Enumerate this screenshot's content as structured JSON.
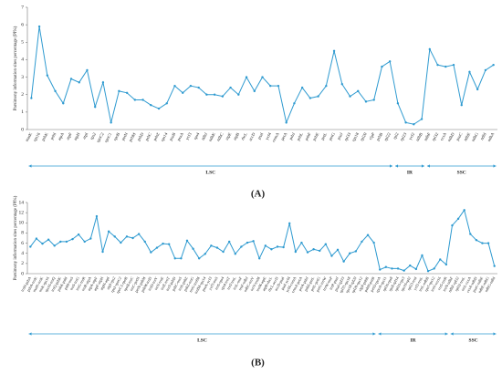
{
  "chart_data": [
    {
      "type": "line",
      "panel": "(A)",
      "ylabel": "Parsimony information sites percentage (PI%)",
      "color": "#2e9ad0",
      "ylim": [
        0,
        7
      ],
      "yticks": [
        0,
        1,
        2,
        3,
        4,
        5,
        6,
        7
      ],
      "regions": [
        {
          "label": "LSC",
          "categories": [
            "matK",
            "rps16",
            "psbK",
            "psbI",
            "atpA",
            "atpF",
            "atpH",
            "atpI",
            "rps2",
            "rpoC2",
            "rpoC1",
            "rpoB",
            "petN",
            "psbM",
            "psbD",
            "psbC",
            "psbZ",
            "rps14",
            "psaB",
            "psaA",
            "ycf3",
            "rps4",
            "ndhJ",
            "ndhK",
            "ndhC",
            "atpE",
            "atpB",
            "rbcL",
            "accD",
            "psaI",
            "ycf4",
            "cemA",
            "petA",
            "psbJ",
            "psbL",
            "psbF",
            "psbE",
            "petL",
            "petG",
            "psaJ",
            "rpl33",
            "rps18",
            "rpl20",
            "clpP",
            "psbB",
            "rpl22"
          ],
          "values": [
            1.8,
            5.9,
            3.1,
            2.2,
            1.5,
            2.9,
            2.7,
            3.4,
            1.3,
            2.7,
            0.4,
            2.2,
            2.1,
            1.7,
            1.7,
            1.4,
            1.2,
            1.5,
            2.5,
            2.1,
            2.5,
            2.4,
            2.0,
            2.0,
            1.9,
            2.4,
            2.0,
            3.0,
            2.2,
            3.0,
            2.5,
            2.5,
            0.4,
            1.5,
            2.4,
            1.8,
            1.9,
            2.5,
            4.5,
            2.6,
            1.9,
            2.2,
            1.6,
            1.7,
            3.6,
            3.9
          ]
        },
        {
          "label": "IR",
          "categories": [
            "rpl2",
            "rpl23",
            "ycf2",
            "ndhB"
          ],
          "values": [
            1.5,
            0.4,
            0.3,
            0.6
          ]
        },
        {
          "label": "SSC",
          "categories": [
            "ndhF",
            "rpl32",
            "ccsA",
            "ndhD",
            "psaC",
            "ndhE",
            "ndhG",
            "ndhI",
            "ndhA"
          ],
          "values": [
            4.6,
            3.7,
            3.6,
            3.7,
            1.4,
            3.3,
            2.3,
            3.4,
            3.7
          ]
        }
      ]
    },
    {
      "type": "line",
      "panel": "(B)",
      "ylabel": "Parsimony information sites percentage (PI%)",
      "color": "#2e9ad0",
      "ylim": [
        0,
        14
      ],
      "yticks": [
        0,
        2,
        4,
        6,
        8,
        10,
        12,
        14
      ],
      "regions": [
        {
          "label": "LSC",
          "categories": [
            "trnH-psbA",
            "psbA-trnK",
            "matK-trnK",
            "trnK-rps16",
            "rps16-trnQ",
            "trnQ-psbK",
            "psbK-psbI",
            "psbI-trnS",
            "trnS-trnG",
            "trnG-trnR",
            "trnR-atpA",
            "atpA-atpF",
            "atpF-atpH",
            "atpH-atpI",
            "atpI-rps2",
            "rps2-rpoC2",
            "rpoC1-rpoB",
            "rpoB-trnC",
            "trnC-petN",
            "petN-psbM",
            "psbM-trnD",
            "trnD-trnY",
            "trnY-trnE",
            "trnE-trnT",
            "trnT-psbD",
            "psbC-trnS",
            "trnS-psbZ",
            "psbZ-trnG",
            "trnG-trnfM",
            "trnfM-rps14",
            "psaA-ycf3",
            "ycf3-trnS",
            "trnS-rps4",
            "rps4-trnT",
            "trnT-trnL",
            "trnL-trnF",
            "trnF-ndhJ",
            "ndhC-trnV",
            "trnV-trnM",
            "trnM-atpE",
            "atpB-rbcL",
            "rbcL-accD",
            "accD-psaI",
            "psaI-ycf4",
            "ycf4-cemA",
            "cemA-petA",
            "petA-psbJ",
            "psbE-petL",
            "petL-petG",
            "petG-trnW",
            "trnW-trnP",
            "trnP-psaJ",
            "psaJ-rpl33",
            "rpl33-rps18",
            "rps18-rpl20",
            "rpl20-rps12",
            "clpP-psbB",
            "psbH-petB"
          ],
          "values": [
            5.3,
            6.9,
            5.9,
            6.7,
            5.5,
            6.3,
            6.3,
            6.8,
            7.7,
            6.3,
            6.9,
            11.3,
            4.3,
            8.3,
            7.3,
            6.1,
            7.3,
            7.0,
            7.8,
            6.3,
            4.2,
            5.1,
            5.9,
            5.8,
            3.0,
            3.0,
            6.5,
            4.9,
            3.0,
            3.9,
            5.5,
            5.1,
            4.3,
            6.3,
            3.9,
            5.3,
            6.1,
            6.4,
            3.0,
            5.5,
            4.8,
            5.3,
            5.2,
            9.9,
            4.3,
            6.1,
            4.2,
            4.8,
            4.5,
            5.8,
            3.5,
            4.7,
            2.4,
            4.0,
            4.4,
            6.3,
            7.6,
            6.1
          ]
        },
        {
          "label": "IR",
          "categories": [
            "petD-rpoA",
            "rpoA-rps11",
            "rpl36-rps8",
            "rps8-rpl14",
            "rpl16-rps3",
            "rps19-rpl2",
            "rpl23-trnI",
            "ycf2-trnL",
            "trnL-ndhB",
            "rps7-rps12",
            "trnV-rrn16",
            "rrn5-trnR"
          ],
          "values": [
            0.8,
            1.3,
            1.0,
            1.0,
            0.6,
            1.6,
            0.9,
            3.6,
            0.5,
            1.0,
            2.8,
            1.8
          ]
        },
        {
          "label": "SSC",
          "categories": [
            "trnN-ndhF",
            "ndhF-rpl32",
            "rpl32-trnL",
            "trnL-ccsA",
            "ccsA-ndhD",
            "psaC-ndhE",
            "ndhE-ndhG",
            "ndhG-ndhI"
          ],
          "values": [
            9.5,
            10.8,
            12.5,
            7.8,
            6.6,
            6.0,
            6.0,
            1.5
          ]
        }
      ]
    }
  ]
}
